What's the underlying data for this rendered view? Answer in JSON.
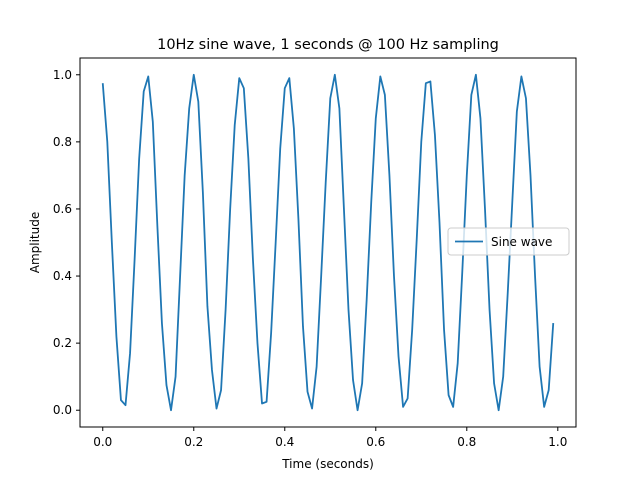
{
  "chart_data": {
    "type": "line",
    "title": "10Hz sine wave, 1 seconds @ 100 Hz sampling",
    "xlabel": "Time (seconds)",
    "ylabel": "Amplitude",
    "xlim": [
      -0.05,
      1.04
    ],
    "ylim": [
      -0.05,
      1.05
    ],
    "xticks": [
      0.0,
      0.2,
      0.4,
      0.6,
      0.8,
      1.0
    ],
    "xtick_labels": [
      "0.0",
      "0.2",
      "0.4",
      "0.6",
      "0.8",
      "1.0"
    ],
    "yticks": [
      0.0,
      0.2,
      0.4,
      0.6,
      0.8,
      1.0
    ],
    "ytick_labels": [
      "0.0",
      "0.2",
      "0.4",
      "0.6",
      "0.8",
      "1.0"
    ],
    "grid": false,
    "legend_position": "center-right",
    "series": [
      {
        "name": "Sine wave",
        "color": "#1f77b4",
        "x": [
          0.0,
          0.01,
          0.02,
          0.03,
          0.04,
          0.05,
          0.06,
          0.07,
          0.08,
          0.09,
          0.1,
          0.11,
          0.12,
          0.13,
          0.14,
          0.15,
          0.16,
          0.17,
          0.18,
          0.19,
          0.2,
          0.21,
          0.22,
          0.23,
          0.24,
          0.25,
          0.26,
          0.27,
          0.28,
          0.29,
          0.3,
          0.31,
          0.32,
          0.33,
          0.34,
          0.35,
          0.36,
          0.37,
          0.38,
          0.39,
          0.4,
          0.41,
          0.42,
          0.43,
          0.44,
          0.45,
          0.46,
          0.47,
          0.48,
          0.49,
          0.5,
          0.51,
          0.52,
          0.53,
          0.54,
          0.55,
          0.56,
          0.57,
          0.58,
          0.59,
          0.6,
          0.61,
          0.62,
          0.63,
          0.64,
          0.65,
          0.66,
          0.67,
          0.68,
          0.69,
          0.7,
          0.71,
          0.72,
          0.73,
          0.74,
          0.75,
          0.76,
          0.77,
          0.78,
          0.79,
          0.8,
          0.81,
          0.82,
          0.83,
          0.84,
          0.85,
          0.86,
          0.87,
          0.88,
          0.89,
          0.9,
          0.91,
          0.92,
          0.93,
          0.94,
          0.95,
          0.96,
          0.97,
          0.98,
          0.99
        ],
        "values": [
          0.975,
          0.8,
          0.5,
          0.22,
          0.03,
          0.015,
          0.17,
          0.45,
          0.75,
          0.95,
          0.995,
          0.86,
          0.55,
          0.26,
          0.075,
          0.0,
          0.1,
          0.4,
          0.7,
          0.9,
          1.0,
          0.92,
          0.65,
          0.31,
          0.12,
          0.005,
          0.06,
          0.3,
          0.6,
          0.85,
          0.99,
          0.96,
          0.75,
          0.45,
          0.2,
          0.02,
          0.025,
          0.23,
          0.5,
          0.78,
          0.96,
          0.99,
          0.84,
          0.57,
          0.25,
          0.055,
          0.005,
          0.13,
          0.4,
          0.68,
          0.93,
          1.0,
          0.9,
          0.6,
          0.3,
          0.09,
          0.0,
          0.08,
          0.33,
          0.62,
          0.87,
          0.995,
          0.94,
          0.7,
          0.4,
          0.16,
          0.01,
          0.035,
          0.24,
          0.51,
          0.8,
          0.975,
          0.98,
          0.82,
          0.56,
          0.24,
          0.045,
          0.01,
          0.14,
          0.41,
          0.7,
          0.94,
          1.0,
          0.87,
          0.6,
          0.3,
          0.08,
          0.0,
          0.1,
          0.35,
          0.62,
          0.89,
          0.995,
          0.93,
          0.7,
          0.4,
          0.13,
          0.01,
          0.06,
          0.26
        ]
      }
    ]
  }
}
